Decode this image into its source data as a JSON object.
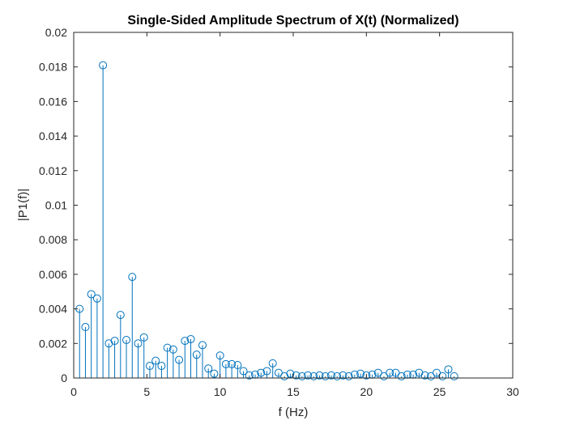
{
  "chart_data": {
    "type": "stem",
    "title": "Single-Sided Amplitude Spectrum of X(t) (Normalized)",
    "xlabel": "f (Hz)",
    "ylabel": "|P1(f)|",
    "xlim": [
      0,
      30
    ],
    "ylim": [
      0,
      0.02
    ],
    "x_ticks": [
      0,
      5,
      10,
      15,
      20,
      25,
      30
    ],
    "x_tick_labels": [
      "0",
      "5",
      "10",
      "15",
      "20",
      "25",
      "30"
    ],
    "y_ticks": [
      0,
      0.002,
      0.004,
      0.006,
      0.008,
      0.01,
      0.012,
      0.014,
      0.016,
      0.018,
      0.02
    ],
    "y_tick_labels": [
      "0",
      "0.002",
      "0.004",
      "0.006",
      "0.008",
      "0.01",
      "0.012",
      "0.014",
      "0.016",
      "0.018",
      "0.02"
    ],
    "grid": false,
    "marker": "circle",
    "color": "#0072BD",
    "series": [
      {
        "x": [
          0.4,
          0.8,
          1.2,
          1.6,
          2.0,
          2.4,
          2.8,
          3.2,
          3.6,
          4.0,
          4.4,
          4.8,
          5.2,
          5.6,
          6.0,
          6.4,
          6.8,
          7.2,
          7.6,
          8.0,
          8.4,
          8.8,
          9.2,
          9.6,
          10.0,
          10.4,
          10.8,
          11.2,
          11.6,
          12.0,
          12.4,
          12.8,
          13.2,
          13.6,
          14.0,
          14.4,
          14.8,
          15.2,
          15.6,
          16.0,
          16.4,
          16.8,
          17.2,
          17.6,
          18.0,
          18.4,
          18.8,
          19.2,
          19.6,
          20.0,
          20.4,
          20.8,
          21.2,
          21.6,
          22.0,
          22.4,
          22.8,
          23.2,
          23.6,
          24.0,
          24.4,
          24.8,
          25.2,
          25.6,
          26.0
        ],
        "values": [
          0.004,
          0.00295,
          0.00485,
          0.0046,
          0.0181,
          0.002,
          0.00215,
          0.00365,
          0.0022,
          0.00585,
          0.002,
          0.00235,
          0.0007,
          0.001,
          0.0007,
          0.00175,
          0.00165,
          0.00105,
          0.00215,
          0.00225,
          0.00135,
          0.0019,
          0.00055,
          0.00025,
          0.0013,
          0.0008,
          0.0008,
          0.00075,
          0.0004,
          0.00015,
          0.0002,
          0.0003,
          0.0004,
          0.00085,
          0.0003,
          0.0001,
          0.00025,
          0.00015,
          0.0001,
          0.00015,
          0.0001,
          0.00015,
          0.0001,
          0.00015,
          0.0001,
          0.00015,
          0.0001,
          0.0002,
          0.00025,
          0.00015,
          0.0002,
          0.0003,
          0.0001,
          0.0003,
          0.0003,
          0.0001,
          0.0002,
          0.0002,
          0.0003,
          0.00015,
          0.0001,
          0.0003,
          0.0001,
          0.0005,
          0.0001
        ]
      }
    ]
  }
}
